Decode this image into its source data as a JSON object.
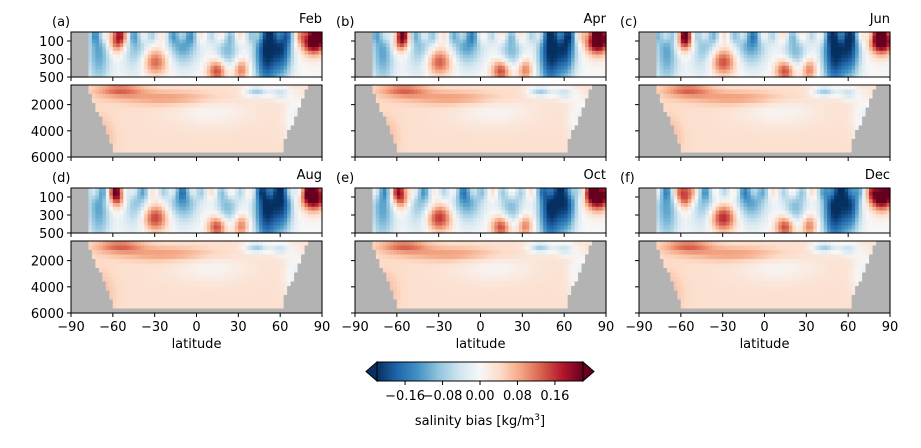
{
  "chart_data": {
    "type": "heatmap",
    "description_free": true,
    "colormap": "RdBu_r",
    "land_color": "#b3b3b3",
    "x_label": "latitude",
    "x_ticks": [
      -90,
      -60,
      -30,
      0,
      30,
      60,
      90
    ],
    "x_range": [
      -90,
      90
    ],
    "upper_depth_ticks": [
      100,
      300,
      500
    ],
    "upper_depth_range": [
      0,
      500
    ],
    "lower_depth_ticks": [
      2000,
      4000,
      6000
    ],
    "lower_depth_range": [
      500,
      6000
    ],
    "panels": [
      {
        "letter": "(a)",
        "month": "Feb"
      },
      {
        "letter": "(b)",
        "month": "Apr"
      },
      {
        "letter": "(c)",
        "month": "Jun"
      },
      {
        "letter": "(d)",
        "month": "Aug"
      },
      {
        "letter": "(e)",
        "month": "Oct"
      },
      {
        "letter": "(f)",
        "month": "Dec"
      }
    ],
    "colorbar": {
      "label_main": "salinity bias [kg/m",
      "label_sup": "3",
      "label_end": "]",
      "range": [
        -0.22,
        0.22
      ],
      "ticks": [
        "−0.16",
        "−0.08",
        "0.00",
        "0.08",
        "0.16"
      ],
      "tick_values": [
        -0.16,
        -0.08,
        0.0,
        0.08,
        0.16
      ],
      "extend": "both"
    }
  }
}
